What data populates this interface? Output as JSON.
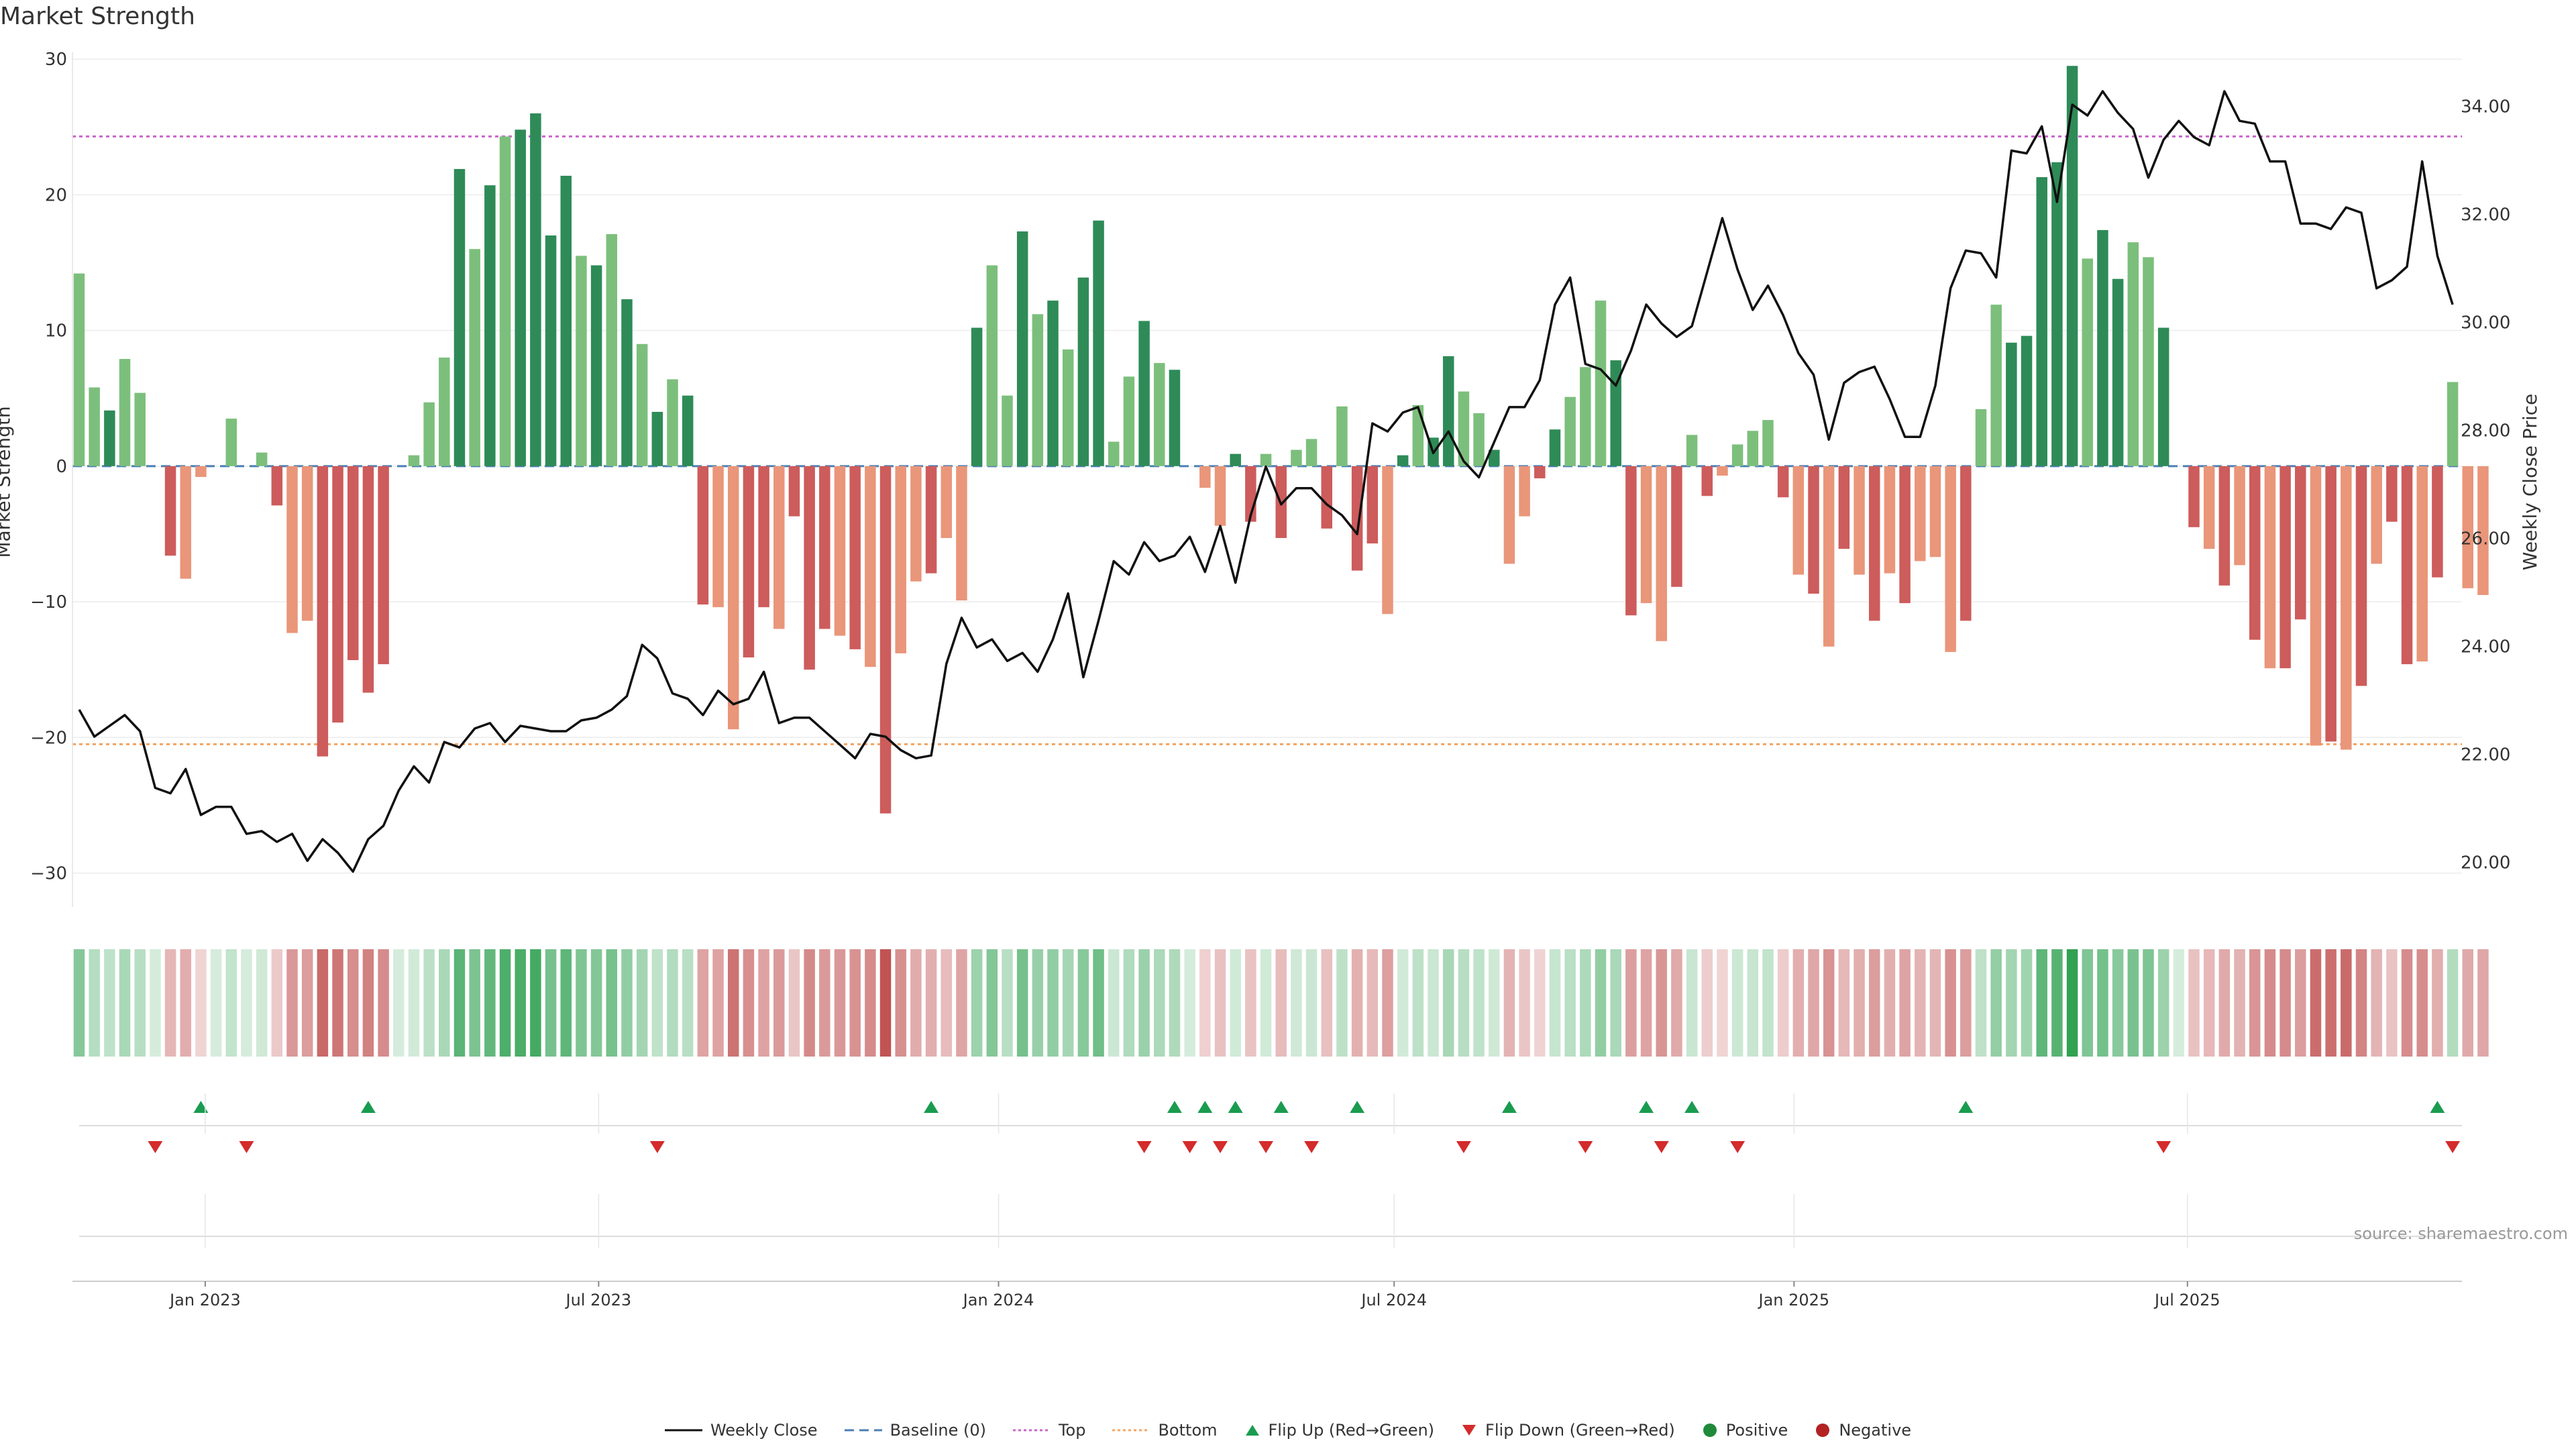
{
  "header": {
    "title": "Market Strength"
  },
  "source_text": "source: sharemaestro.com",
  "colors": {
    "pos_strong": "#2e8b57",
    "pos_light": "#7cbf7c",
    "neg_strong": "#cd5c5c",
    "neg_light": "#e9967a",
    "price_line": "#111111",
    "top_line": "#c964c9",
    "bottom_line": "#f4a460",
    "baseline": "#4a7fb5",
    "flip_up": "#1a9c50",
    "flip_down": "#d42b2b"
  },
  "legend": [
    {
      "key": "weekly_close",
      "label": "Weekly Close"
    },
    {
      "key": "baseline",
      "label": "Baseline (0)"
    },
    {
      "key": "top",
      "label": "Top"
    },
    {
      "key": "bottom",
      "label": "Bottom"
    },
    {
      "key": "flip_up",
      "label": "Flip Up (Red→Green)"
    },
    {
      "key": "flip_down",
      "label": "Flip Down (Green→Red)"
    },
    {
      "key": "positive",
      "label": "Positive"
    },
    {
      "key": "negative",
      "label": "Negative"
    }
  ],
  "chart_data": {
    "type": "bar",
    "title": "Market Strength",
    "ylabel": "Market Strength",
    "y2label": "Weekly Close Price",
    "ylim": [
      -32,
      30.5
    ],
    "y2lim": [
      19.3,
      35.0
    ],
    "yticks": [
      "−30",
      "−20",
      "−10",
      "0",
      "10",
      "20",
      "30"
    ],
    "y2ticks": [
      "20.00",
      "22.00",
      "24.00",
      "26.00",
      "28.00",
      "30.00",
      "32.00",
      "34.00"
    ],
    "top_level": 24.3,
    "bottom_level": -20.5,
    "x_start": "2022-11-04",
    "x_labels": [
      "Jan 2023",
      "Jul 2023",
      "Jan 2024",
      "Jul 2024",
      "Jan 2025",
      "Jul 2025"
    ],
    "x_label_dates": [
      "2023-01-01",
      "2023-07-01",
      "2024-01-01",
      "2024-07-01",
      "2025-01-01",
      "2025-07-01"
    ],
    "strength": [
      14.2,
      5.8,
      4.1,
      7.9,
      5.4,
      0,
      -6.6,
      -8.3,
      -0.8,
      0,
      3.5,
      0,
      1,
      -2.9,
      -12.3,
      -11.4,
      -21.4,
      -18.9,
      -14.3,
      -16.7,
      -14.6,
      0,
      0.8,
      4.7,
      8,
      21.9,
      16,
      20.7,
      24.3,
      24.8,
      26,
      17,
      21.4,
      15.5,
      14.8,
      17.1,
      12.3,
      9,
      4,
      6.4,
      5.2,
      -10.2,
      -10.4,
      -19.4,
      -14.1,
      -10.4,
      -12,
      -3.7,
      -15,
      -12,
      -12.5,
      -13.5,
      -14.8,
      -25.6,
      -13.8,
      -8.5,
      -7.9,
      -5.3,
      -9.9,
      10.2,
      14.8,
      5.2,
      17.3,
      11.2,
      12.2,
      8.6,
      13.9,
      18.1,
      1.8,
      6.6,
      10.7,
      7.6,
      7.1,
      0,
      -1.6,
      -4.4,
      0.9,
      -4.1,
      0.9,
      -5.3,
      1.2,
      2,
      -4.6,
      4.4,
      -7.7,
      -5.7,
      -10.9,
      0.8,
      4.5,
      2.1,
      8.1,
      5.5,
      3.9,
      1.2,
      -7.2,
      -3.7,
      -0.9,
      2.7,
      5.1,
      7.3,
      12.2,
      7.8,
      -11,
      -10.1,
      -12.9,
      -8.9,
      2.3,
      -2.2,
      -0.7,
      1.6,
      2.6,
      3.4,
      -2.3,
      -8,
      -9.4,
      -13.3,
      -6.1,
      -8,
      -11.4,
      -7.9,
      -10.1,
      -7,
      -6.7,
      -13.7,
      -11.4,
      4.2,
      11.9,
      9.1,
      9.6,
      21.3,
      22.4,
      29.5,
      15.3,
      17.4,
      13.8,
      16.5,
      15.4,
      10.2,
      0,
      -4.5,
      -6.1,
      -8.8,
      -7.3,
      -12.8,
      -14.9,
      -14.9,
      -11.3,
      -20.6,
      -20.3,
      -20.9,
      -16.2,
      -7.2,
      -4.1,
      -14.6,
      -14.4,
      -8.2,
      6.2,
      -9,
      -9.5
    ],
    "strength_tone": "001001100000010011111100010101111010101011001101110101001001001010110010100011010010110101100100110001100101000010101010100010011111011001010101011010101101000000",
    "price": [
      22.83,
      22.33,
      22.53,
      22.73,
      22.43,
      21.38,
      21.28,
      21.73,
      20.88,
      21.03,
      21.03,
      20.53,
      20.58,
      20.38,
      20.53,
      20.03,
      20.43,
      20.18,
      19.83,
      20.43,
      20.68,
      21.33,
      21.78,
      21.48,
      22.23,
      22.13,
      22.48,
      22.58,
      22.23,
      22.53,
      22.48,
      22.43,
      22.43,
      22.63,
      22.68,
      22.83,
      23.08,
      24.03,
      23.78,
      23.13,
      23.03,
      22.73,
      23.18,
      22.93,
      23.03,
      23.53,
      22.58,
      22.68,
      22.68,
      22.43,
      22.18,
      21.93,
      22.38,
      22.33,
      22.08,
      21.93,
      21.98,
      23.68,
      24.53,
      23.98,
      24.13,
      23.73,
      23.88,
      23.53,
      24.13,
      24.98,
      23.43,
      24.48,
      25.58,
      25.33,
      25.93,
      25.58,
      25.68,
      26.03,
      25.38,
      26.23,
      25.18,
      26.43,
      27.33,
      26.63,
      26.93,
      26.93,
      26.63,
      26.43,
      26.08,
      28.13,
      27.98,
      28.33,
      28.43,
      27.58,
      27.98,
      27.43,
      27.13,
      27.78,
      28.43,
      28.43,
      28.93,
      30.33,
      30.83,
      29.23,
      29.13,
      28.83,
      29.48,
      30.33,
      29.98,
      29.73,
      29.93,
      30.93,
      31.93,
      30.98,
      30.23,
      30.68,
      30.13,
      29.43,
      29.03,
      27.83,
      28.88,
      29.08,
      29.18,
      28.58,
      27.88,
      27.88,
      28.83,
      30.63,
      31.33,
      31.28,
      30.83,
      33.18,
      33.13,
      33.63,
      32.23,
      34.03,
      33.83,
      34.28,
      33.88,
      33.58,
      32.68,
      33.38,
      33.73,
      33.43,
      33.28,
      34.28,
      33.73,
      33.68,
      32.98,
      32.98,
      31.83,
      31.83,
      31.73,
      32.13,
      32.03,
      30.63,
      30.78,
      31.03,
      32.98,
      31.23,
      30.33
    ],
    "flip_up_weeks": [
      8,
      19,
      56,
      72,
      74,
      76,
      79,
      84,
      94,
      103,
      106,
      124,
      155
    ],
    "flip_down_weeks": [
      5,
      11,
      38,
      70,
      73,
      75,
      78,
      81,
      91,
      99,
      104,
      109,
      137,
      156
    ]
  }
}
